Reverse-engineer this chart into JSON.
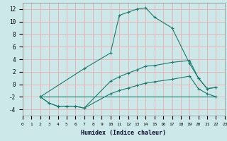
{
  "xlabel": "Humidex (Indice chaleur)",
  "xlim": [
    0,
    23
  ],
  "ylim": [
    -5,
    13
  ],
  "yticks": [
    -4,
    -2,
    0,
    2,
    4,
    6,
    8,
    10,
    12
  ],
  "xticks": [
    0,
    1,
    2,
    3,
    4,
    5,
    6,
    7,
    8,
    9,
    10,
    11,
    12,
    13,
    14,
    15,
    16,
    17,
    18,
    19,
    20,
    21,
    22,
    23
  ],
  "bg_color": "#cce8e8",
  "grid_color": "#e8b4b4",
  "line_color": "#1a7a6e",
  "lines": [
    {
      "x": [
        2,
        7,
        10,
        11,
        12,
        13,
        14,
        15,
        17,
        19,
        20,
        21,
        22
      ],
      "y": [
        -2,
        2.5,
        5.0,
        11.0,
        11.5,
        12.0,
        12.2,
        10.7,
        9.0,
        3.3,
        1.0,
        -0.7,
        -0.5
      ],
      "markers": true
    },
    {
      "x": [
        2,
        3,
        4,
        5,
        6,
        7,
        10,
        11,
        12,
        13,
        14,
        15,
        17,
        19,
        20,
        21,
        22
      ],
      "y": [
        -2,
        -3,
        -3.5,
        -3.5,
        -3.5,
        -3.8,
        0.5,
        1.2,
        1.8,
        2.3,
        2.9,
        3.0,
        3.5,
        3.8,
        1.0,
        -0.7,
        -0.5
      ],
      "markers": true
    },
    {
      "x": [
        2,
        3,
        4,
        5,
        6,
        7,
        10,
        11,
        12,
        13,
        14,
        15,
        17,
        19,
        20,
        21,
        22
      ],
      "y": [
        -2,
        -3,
        -3.5,
        -3.5,
        -3.5,
        -3.8,
        -1.5,
        -1.0,
        -0.6,
        -0.2,
        0.2,
        0.4,
        0.8,
        1.3,
        -0.7,
        -1.5,
        -2.0
      ],
      "markers": true
    },
    {
      "x": [
        2,
        22
      ],
      "y": [
        -2,
        -2
      ],
      "markers": false
    }
  ]
}
